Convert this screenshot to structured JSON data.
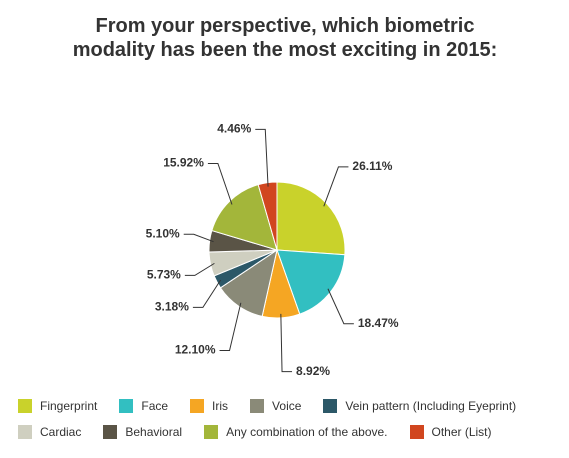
{
  "chart_data": {
    "type": "pie",
    "title": "From your perspective, which biometric modality has been the most exciting in 2015:",
    "categories": [
      "Fingerprint",
      "Face",
      "Iris",
      "Voice",
      "Vein pattern (Including Eyeprint)",
      "Cardiac",
      "Behavioral",
      "Any combination of the above.",
      "Other (List)"
    ],
    "values": [
      26.11,
      18.47,
      8.92,
      12.1,
      3.18,
      5.73,
      5.1,
      15.92,
      4.46
    ],
    "value_labels": [
      "26.11%",
      "18.47%",
      "8.92%",
      "12.10%",
      "3.18%",
      "5.73%",
      "5.10%",
      "15.92%",
      "4.46%"
    ],
    "colors": [
      "#c9d22b",
      "#32bfc1",
      "#f5a623",
      "#8a8a78",
      "#2c5868",
      "#cfcfc0",
      "#5a5446",
      "#a3b63a",
      "#d1461f"
    ]
  }
}
